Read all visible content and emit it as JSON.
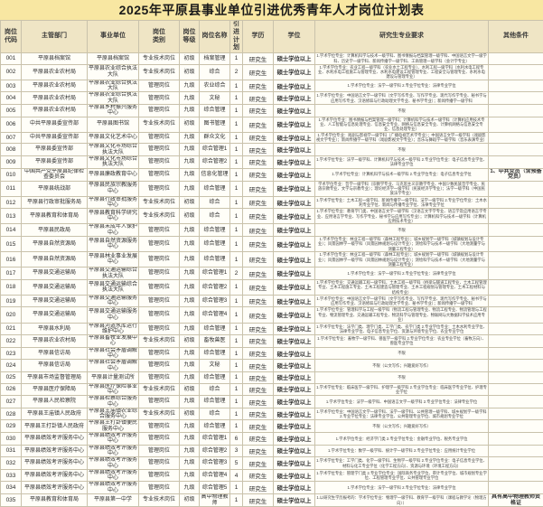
{
  "title": "2025年平原县事业单位引进优秀青年人才岗位计划表",
  "table": {
    "headers": [
      "岗位\n代码",
      "主管部门",
      "事业单位",
      "岗位\n类别",
      "岗位\n等级",
      "岗位名称",
      "引进\n计划",
      "学历",
      "学位",
      "研究生专业要求",
      "其他条件"
    ],
    "rows": [
      {
        "code": "001",
        "dept": "平原县档案馆",
        "unit": "平原县档案馆",
        "category": "专业技术岗位",
        "level": "初级",
        "name": "档案管理",
        "count": "1",
        "edu": "研究生",
        "degree": "硕士学位以上",
        "req": "1.学术学位专业：计算机科学与技术一级学科、图书情报与档案管理一级学科、中国语言文学一级学科、历史学一级学科、新闻传播学一级学科、工商管理一级学科（会计学专业）",
        "other": ""
      },
      {
        "code": "002",
        "dept": "平原县农业农村局",
        "unit": "平原县农业综合执法大队",
        "category": "专业技术岗位",
        "level": "初级",
        "name": "综合",
        "count": "2",
        "edu": "研究生",
        "degree": "硕士学位以上",
        "req": "1.学术学位专业：农业工程一级学科（农业水土工程专业）、水利工程一级学科（水利水电工程专业、水利水电工程施工与管理专业、水利水电建设工程管理专业、工程安全与管理专业、水利水电建设与管理专业）",
        "other": ""
      },
      {
        "code": "003",
        "dept": "平原县农业农村局",
        "unit": "平原县农业综合执法大队",
        "category": "管理岗位",
        "level": "九级",
        "name": "农业综合",
        "count": "1",
        "edu": "研究生",
        "degree": "硕士学位以上",
        "req": "1.学术学位专业：法学一级学科 2.专业学位专业：法律专业学位",
        "other": ""
      },
      {
        "code": "004",
        "dept": "平原县农业农村局",
        "unit": "平原县农业综合执法大队",
        "category": "管理岗位",
        "level": "九级",
        "name": "文秘",
        "count": "1",
        "edu": "研究生",
        "degree": "硕士学位以上",
        "req": "1.学术学位专业：中国语言文学一级学科（文学写作专业、写作学专业、现代写作学专业、秘书学与应用写作专业、汉语修辞与行政助理文学专业、秘书学专业）；新闻传播学一级学科",
        "other": ""
      },
      {
        "code": "005",
        "dept": "平原县农业农村局",
        "unit": "平原县乡村振兴服务中心",
        "category": "管理岗位",
        "level": "九级",
        "name": "综合管理",
        "count": "1",
        "edu": "研究生",
        "degree": "硕士学位以上",
        "req": "不限",
        "other": ""
      },
      {
        "code": "006",
        "dept": "中共平原县委宣传部",
        "unit": "平原县图书馆",
        "category": "专业技术岗位",
        "level": "初级",
        "name": "图书管理",
        "count": "1",
        "edu": "研究生",
        "degree": "硕士学位以上",
        "req": "1.学术学位专业：图书情报与档案管理一级学科；计算机科学与技术一级学科（计算机应用技术专业、人工智能与信息处理专业、信息安全专业、网络与信息安全专业、计算机网络与信息安全专业、信息处理专业）",
        "other": ""
      },
      {
        "code": "007",
        "dept": "中共平原县委宣传部",
        "unit": "平原县文化艺术中心",
        "category": "管理岗位",
        "level": "九级",
        "name": "群众文化",
        "count": "1",
        "edu": "研究生",
        "degree": "硕士学位以上",
        "req": "1.学术学位专业：戏剧与影视学一级学科（广播电视艺术学专业）；中国语言文学一级学科（戏剧影视文学专业）；新闻传播学一级学科（戏剧影视文学专业）；音乐与舞蹈学一级学科（音乐表演专业）",
        "other": ""
      },
      {
        "code": "008",
        "dept": "平原县委宣传部",
        "unit": "平原县文化市场综合执法大队",
        "category": "管理岗位",
        "level": "九级",
        "name": "综合管理1",
        "count": "1",
        "edu": "研究生",
        "degree": "硕士学位以上",
        "req": "不限",
        "other": ""
      },
      {
        "code": "009",
        "dept": "平原县委宣传部",
        "unit": "平原县文化市场综合执法大队",
        "category": "管理岗位",
        "level": "九级",
        "name": "综合管理2",
        "count": "1",
        "edu": "研究生",
        "degree": "硕士学位以上",
        "req": "1.学术学位专业：法学一级学科、计算机科学与技术一级学科 2.专业学位专业：电子信息专业学位、法律专业学位",
        "other": ""
      },
      {
        "code": "010",
        "dept": "中国共产党平原县纪律检查委员会",
        "unit": "平原县廉政教育中心",
        "category": "管理岗位",
        "level": "九级",
        "name": "信息化管理",
        "count": "1",
        "edu": "研究生",
        "degree": "硕士学位以上",
        "req": "1.学术学位专业：计算机科学与技术一级学科 2.专业学位专业：电子信息专业学位",
        "other": "1、中共党员（含预备党员）"
      },
      {
        "code": "011",
        "dept": "平原县统战部",
        "unit": "平原县民族宗教服务中心",
        "category": "管理岗位",
        "level": "九级",
        "name": "综合管理",
        "count": "1",
        "edu": "研究生",
        "degree": "硕士学位以上",
        "req": "学术学位专业：哲学一级学科（宗教学专业、马克思主义宗教学专业、中国少数民族哲学专业、民族宗教专业、文学与宗教专业）；理论经济学一级学科（民族经济学专业）；法学一级学科（中国民族法学专业）",
        "other": ""
      },
      {
        "code": "012",
        "dept": "平原县行政审批服务局",
        "unit": "平原县行政审批服务中心",
        "category": "专业技术岗位",
        "level": "初级",
        "name": "综合",
        "count": "1",
        "edu": "研究生",
        "degree": "硕士学位以上",
        "req": "1.学术学位专业：土木工程一级学科、新闻传播学一级学科、法学一级学科 2.专业学位专业：土木水利专业学位、新闻与传播专业学位、法律专业学位",
        "other": ""
      },
      {
        "code": "013",
        "dept": "平原县教育和体育局",
        "unit": "平原县教育科学研究中心",
        "category": "专业技术岗位",
        "level": "初级",
        "name": "综合",
        "count": "1",
        "edu": "研究生",
        "degree": "硕士学位以上",
        "req": "1.学术学位专业：教育学门类、中国语言文学一级学科（汉语言文字学专业、语言学及应用语言学专业、应用语言学专业、写作学专业、秘书学与应用写作专业）；计算机科学与技术一级学科（计算机应用技术专业）",
        "other": ""
      },
      {
        "code": "014",
        "dept": "平原县民政局",
        "unit": "平原县未成年人保护中心",
        "category": "管理岗位",
        "level": "九级",
        "name": "综合管理",
        "count": "1",
        "edu": "研究生",
        "degree": "硕士学位以上",
        "req": "不限",
        "other": ""
      },
      {
        "code": "015",
        "dept": "平原县自然资源局",
        "unit": "平原县自然资源服务中心",
        "category": "管理岗位",
        "level": "九级",
        "name": "综合管理",
        "count": "1",
        "edu": "研究生",
        "degree": "硕士学位以上",
        "req": "1.学术学位专业：林业工程一级学科（森林工程专业）；城乡规划学一级学科（城镇规划与设计专业）；风景园林学一级学科（风景园林规划与设计专业）；测绘科学与技术一级学科（大地测量学与测量工程专业）",
        "other": ""
      },
      {
        "code": "016",
        "dept": "平原县自然资源局",
        "unit": "平原县林业事业发展中心",
        "category": "管理岗位",
        "level": "九级",
        "name": "综合管理",
        "count": "1",
        "edu": "研究生",
        "degree": "硕士学位以上",
        "req": "1.学术学位专业：林业工程一级学科（森林工程专业）；城乡规划学一级学科（城镇规划与设计专业）；风景园林学一级学科（风景园林规划与设计专业）；测绘科学与技术一级学科（大地测量学与测量工程专业）",
        "other": ""
      },
      {
        "code": "017",
        "dept": "平原县交通运输局",
        "unit": "平原县交通运输综合执法大队",
        "category": "管理岗位",
        "level": "九级",
        "name": "综合管理1",
        "count": "2",
        "edu": "研究生",
        "degree": "硕士学位以上",
        "req": "1.学术学位专业：法学一级学科 2.专业学位专业：法律专业学位",
        "other": ""
      },
      {
        "code": "018",
        "dept": "平原县交通运输局",
        "unit": "平原县交通运输综合执法大队",
        "category": "管理岗位",
        "level": "九级",
        "name": "综合管理2",
        "count": "1",
        "edu": "研究生",
        "degree": "硕士学位以上",
        "req": "1.学术学位专业：交通运输工程一级学科、土木工程一级学科（桥梁与隧道工程专业、土木工程管理专业、土木工程施工专业、土木工程建造与管理专业、土木工程规划与管理专业、土木工程材料与结构专业）",
        "other": ""
      },
      {
        "code": "019",
        "dept": "平原县交通运输局",
        "unit": "平原县交通运输服务中心",
        "category": "管理岗位",
        "level": "九级",
        "name": "综合管理3",
        "count": "1",
        "edu": "研究生",
        "degree": "硕士学位以上",
        "req": "1.学术学位专业：中国语言文学一级学科（文学写作专业、写作学专业、现代写作学专业、秘书学与应用写作专业、汉语修辞与行政助理文学专业、秘书学专业）；新闻传播学一级学科",
        "other": ""
      },
      {
        "code": "020",
        "dept": "平原县交通运输局",
        "unit": "平原县交通运输服务中心",
        "category": "管理岗位",
        "level": "九级",
        "name": "综合管理4",
        "count": "1",
        "edu": "研究生",
        "degree": "硕士学位以上",
        "req": "1.学术学位专业：管理科学与工程一级学科（物流工程与管理专业、物流工程专业、物流管理与工程专业、物流管理专业、交通运输工程专业、物流科学与管理专业、物联网与大数据科学技术应用专业）",
        "other": ""
      },
      {
        "code": "021",
        "dept": "平原县水利局",
        "unit": "平原县河道水库运行维护中心",
        "category": "管理岗位",
        "level": "九级",
        "name": "综合管理",
        "count": "1",
        "edu": "研究生",
        "degree": "硕士学位以上",
        "req": "1.学术学位专业：法学门类、理学门类、工学门类、农学门类 2.专业学位专业：土木水利专业学位、法律专业学位、电子信息专业学位、资源与环境专业学位、农业专业学位",
        "other": ""
      },
      {
        "code": "022",
        "dept": "平原县农业农村局",
        "unit": "平原县畜牧业发展中心",
        "category": "专业技术岗位",
        "level": "初级",
        "name": "畜牧兽医",
        "count": "1",
        "edu": "研究生",
        "degree": "硕士学位以上",
        "req": "1.学术学位专业：畜牧学一级学科、兽医学一级学科 2.专业学位专业：农业专业学位（畜牧方向）、兽医专业学位",
        "other": ""
      },
      {
        "code": "023",
        "dept": "平原县信访局",
        "unit": "平原县社会矛盾调解中心",
        "category": "管理岗位",
        "level": "九级",
        "name": "综合管理",
        "count": "1",
        "edu": "研究生",
        "degree": "硕士学位以上",
        "req": "不限",
        "other": ""
      },
      {
        "code": "024",
        "dept": "平原县信访局",
        "unit": "平原县社会矛盾调解中心",
        "category": "管理岗位",
        "level": "九级",
        "name": "文秘",
        "count": "1",
        "edu": "研究生",
        "degree": "硕士学位以上",
        "req": "不限（公文写作；兴趣爱好写作）",
        "other": ""
      },
      {
        "code": "025",
        "dept": "平原县市场监督管理局",
        "unit": "平原县计量测试所",
        "category": "管理岗位",
        "level": "九级",
        "name": "综合管理",
        "count": "1",
        "edu": "研究生",
        "degree": "硕士学位以上",
        "req": "不限",
        "other": ""
      },
      {
        "code": "026",
        "dept": "平原县医疗保障局",
        "unit": "平原县医疗保险事业中心",
        "category": "专业技术岗位",
        "level": "初级",
        "name": "综合",
        "count": "1",
        "edu": "研究生",
        "degree": "硕士学位以上",
        "req": "1.学术学位专业：临床医学一级学科、护理学一级学科 2.专业学位专业：临床医学专业学位、护理专业学位",
        "other": ""
      },
      {
        "code": "027",
        "dept": "平原县人民检察院",
        "unit": "平原县检察综合服务中心",
        "category": "管理岗位",
        "level": "九级",
        "name": "综合管理",
        "count": "1",
        "edu": "研究生",
        "degree": "硕士学位以上",
        "req": "1.学术学位专业：法学一级学科、中国语言文学一级学科 2.专业学位专业：法律专业学位",
        "other": ""
      },
      {
        "code": "028",
        "dept": "平原县王庙镇人民政府",
        "unit": "平原县王庙镇农业综合服务中心",
        "category": "专业技术岗位",
        "level": "初级",
        "name": "综合",
        "count": "1",
        "edu": "研究生",
        "degree": "硕士学位以上",
        "req": "1.学术学位专业：中国语言文学一级学科、法学一级学科、公共管理一级学科、城乡规划学一级学科 2.专业学位专业：法律专业学位、公共管理专业学位、城市规划专业学位",
        "other": ""
      },
      {
        "code": "029",
        "dept": "平原县王打卦镇人民政府",
        "unit": "平原县王打卦镇便民服务中心",
        "category": "管理岗位",
        "level": "九级",
        "name": "综合管理",
        "count": "1",
        "edu": "研究生",
        "degree": "硕士学位以上",
        "req": "不限（公文写作；兴趣爱好写作）",
        "other": ""
      },
      {
        "code": "030",
        "dept": "平原县绩效考评服务中心",
        "unit": "平原县绩效考评服务中心",
        "category": "管理岗位",
        "level": "九级",
        "name": "综合管理1",
        "count": "6",
        "edu": "研究生",
        "degree": "硕士学位以上",
        "req": "1.学术学位专业：经济学门类 2.专业学位专业：金融专业学位、税务专业学位",
        "other": ""
      },
      {
        "code": "031",
        "dept": "平原县绩效考评服务中心",
        "unit": "平原县绩效考评服务中心",
        "category": "管理岗位",
        "level": "九级",
        "name": "综合管理2",
        "count": "3",
        "edu": "研究生",
        "degree": "硕士学位以上",
        "req": "1.学术学位专业：数学一级学科、统计学一级学科 2.专业学位专业：应用统计专业学位",
        "other": ""
      },
      {
        "code": "032",
        "dept": "平原县绩效考评服务中心",
        "unit": "平原县绩效考评服务中心",
        "category": "管理岗位",
        "level": "九级",
        "name": "综合管理3",
        "count": "5",
        "edu": "研究生",
        "degree": "硕士学位以上",
        "req": "1.学术学位专业：工学门类、化学一级学科、生物学一级学科 2.专业学位专业：电子信息专业学位、材料与化工专业学位（化学工程方向）、资源与环境（环境工程方向）",
        "other": ""
      },
      {
        "code": "033",
        "dept": "平原县绩效考评服务中心",
        "unit": "平原县绩效考评服务中心",
        "category": "管理岗位",
        "level": "九级",
        "name": "综合管理4",
        "count": "4",
        "edu": "研究生",
        "degree": "硕士学位以上",
        "req": "1.学术学位专业：管理学门类 2.专业学位专业：国际商务专业学位、审计专业学位、城市规划专业学位、工程管理专业学位、公共管理专业学位",
        "other": ""
      },
      {
        "code": "034",
        "dept": "平原县绩效考评服务中心",
        "unit": "平原县绩效考评服务中心",
        "category": "管理岗位",
        "level": "九级",
        "name": "综合管理5",
        "count": "1",
        "edu": "研究生",
        "degree": "硕士学位以上",
        "req": "1.学术学位专业：法学一级学科 2.专业学位专业：法律专业学位",
        "other": ""
      },
      {
        "code": "035",
        "dept": "平原县教育和体育局",
        "unit": "平原县第一中学",
        "category": "专业技术岗位",
        "level": "初级",
        "name": "高中物理教师",
        "count": "1",
        "edu": "研究生",
        "degree": "硕士学位以上",
        "req": "1.以研究生学历报考的：学术学位专业：物理学一级学科、教育学一级学科（课程与教学论（物理方向））",
        "other": "具有高中物理教师资格证"
      }
    ]
  }
}
